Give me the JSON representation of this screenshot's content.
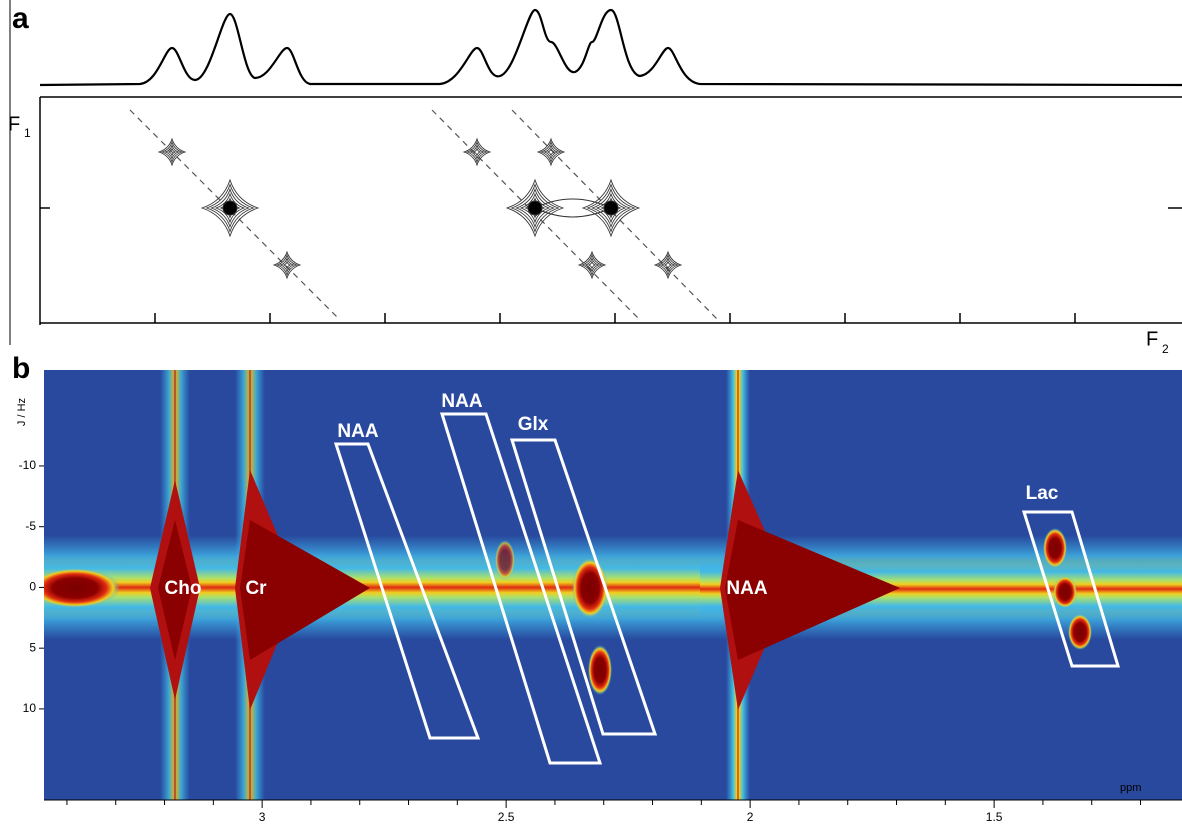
{
  "panel_a": {
    "label": "a",
    "f1_label": "F",
    "f1_sub": "1",
    "f2_label": "F",
    "f2_sub": "2"
  },
  "panel_b": {
    "label": "b",
    "y_axis_label": "J / Hz",
    "x_axis_label": "ppm",
    "xlim": [
      3.447,
      1.115
    ],
    "xticks": [
      3,
      2.5,
      2,
      1.5
    ],
    "ylim": [
      -17.9,
      17.5
    ],
    "yticks": [
      -10,
      -5,
      0,
      5,
      10
    ],
    "annotations": [
      "NAA",
      "NAA",
      "Glx",
      "Cho",
      "Cr",
      "NAA",
      "Lac"
    ]
  }
}
